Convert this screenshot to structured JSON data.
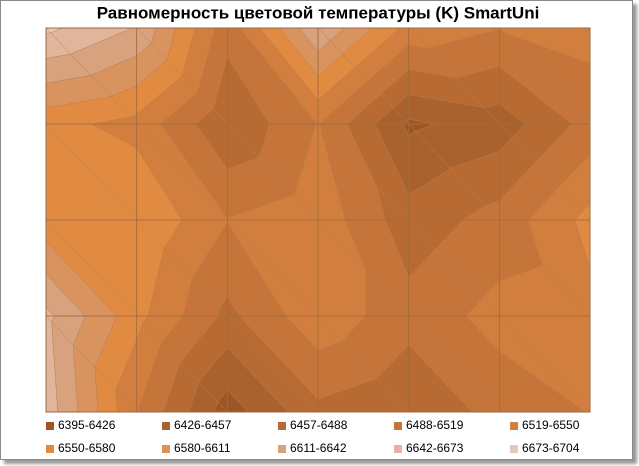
{
  "chart_data": {
    "type": "contour",
    "title": "Равномерность цветовой температуры (K) SmartUni",
    "z": [
      [
        6680,
        6640,
        6500,
        6640,
        6540,
        6520,
        6530
      ],
      [
        6560,
        6540,
        6460,
        6520,
        6420,
        6440,
        6500
      ],
      [
        6560,
        6580,
        6520,
        6540,
        6470,
        6500,
        6560
      ],
      [
        6650,
        6560,
        6480,
        6540,
        6500,
        6530,
        6540
      ],
      [
        6660,
        6520,
        6410,
        6480,
        6460,
        6500,
        6520
      ]
    ],
    "bands": [
      {
        "label": "6395-6426",
        "min": 6395,
        "max": 6426,
        "color": "#9c5626"
      },
      {
        "label": "6426-6457",
        "min": 6426,
        "max": 6457,
        "color": "#a9612d"
      },
      {
        "label": "6457-6488",
        "min": 6457,
        "max": 6488,
        "color": "#b76b33"
      },
      {
        "label": "6488-6519",
        "min": 6488,
        "max": 6519,
        "color": "#c57539"
      },
      {
        "label": "6519-6550",
        "min": 6519,
        "max": 6550,
        "color": "#d27e3e"
      },
      {
        "label": "6550-6580",
        "min": 6550,
        "max": 6580,
        "color": "#e08a42"
      },
      {
        "label": "6580-6611",
        "min": 6580,
        "max": 6611,
        "color": "#d9935f"
      },
      {
        "label": "6611-6642",
        "min": 6611,
        "max": 6642,
        "color": "#d8a27f"
      },
      {
        "label": "6642-6673",
        "min": 6642,
        "max": 6673,
        "color": "#dfb69c"
      },
      {
        "label": "6673-6704",
        "min": 6673,
        "max": 6704,
        "color": "#e8c9b5"
      }
    ]
  }
}
